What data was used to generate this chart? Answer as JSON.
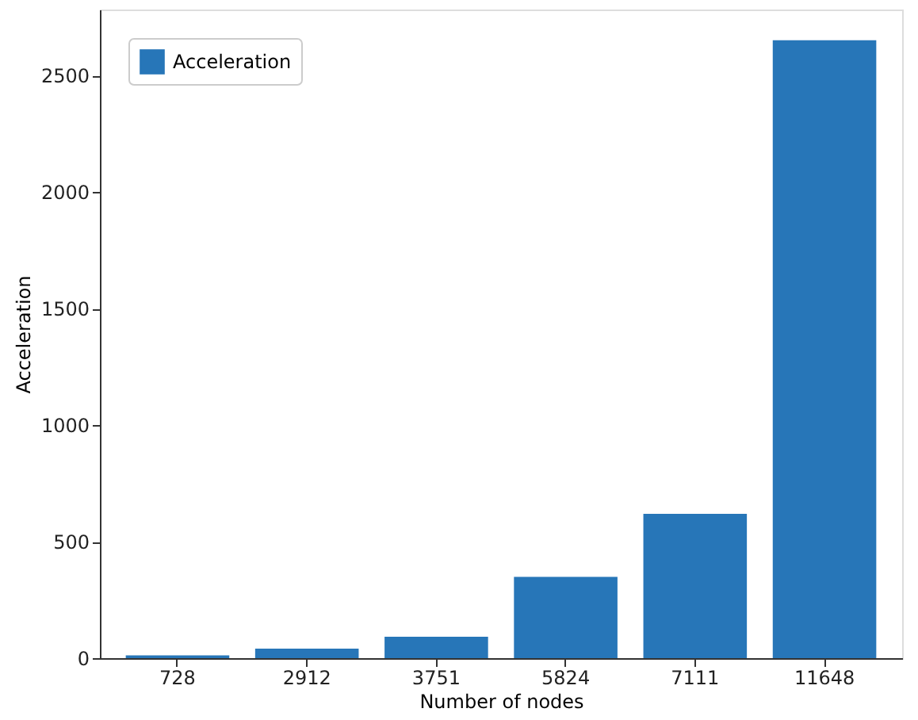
{
  "chart_data": {
    "type": "bar",
    "xlabel": "Number of nodes",
    "ylabel": "Acceleration",
    "categories": [
      "728",
      "2912",
      "3751",
      "5824",
      "7111",
      "11648"
    ],
    "series": [
      {
        "name": "Acceleration",
        "color": "#2776b8",
        "values": [
          12,
          41,
          92,
          349,
          619,
          2651
        ]
      }
    ],
    "ylim": [
      0,
      2783
    ],
    "yticks": [
      0,
      500,
      1000,
      1500,
      2000,
      2500
    ],
    "grid": false,
    "legend": "top left"
  }
}
